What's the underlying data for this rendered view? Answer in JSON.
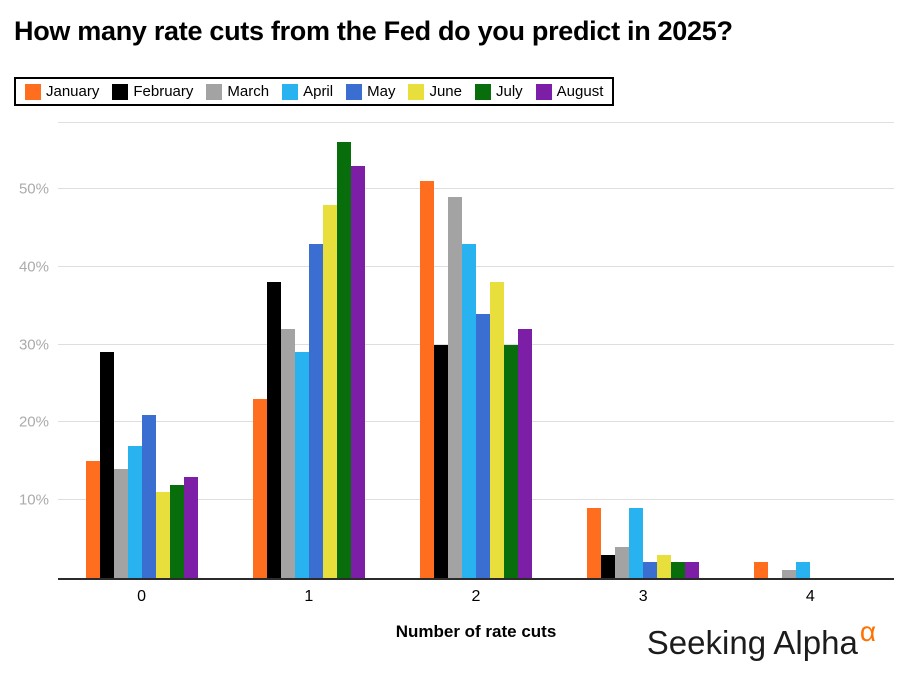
{
  "chart_data": {
    "type": "bar",
    "title": "How many rate cuts from the Fed do you predict in 2025?",
    "xlabel": "Number of rate cuts",
    "ylabel": "",
    "categories": [
      "0",
      "1",
      "2",
      "3",
      "4"
    ],
    "series": [
      {
        "name": "January",
        "color": "#FF6E1E",
        "values": [
          15,
          23,
          51,
          9,
          2
        ]
      },
      {
        "name": "February",
        "color": "#000000",
        "values": [
          29,
          38,
          30,
          3,
          0
        ]
      },
      {
        "name": "March",
        "color": "#A3A3A3",
        "values": [
          14,
          32,
          49,
          4,
          1
        ]
      },
      {
        "name": "April",
        "color": "#29B2F0",
        "values": [
          17,
          29,
          43,
          9,
          2
        ]
      },
      {
        "name": "May",
        "color": "#3A6ED0",
        "values": [
          21,
          43,
          34,
          2,
          0
        ]
      },
      {
        "name": "June",
        "color": "#E9DF3C",
        "values": [
          11,
          48,
          38,
          3,
          0
        ]
      },
      {
        "name": "July",
        "color": "#086E0C",
        "values": [
          12,
          56,
          30,
          2,
          0
        ]
      },
      {
        "name": "August",
        "color": "#7D1FA6",
        "values": [
          13,
          53,
          32,
          2,
          0
        ]
      }
    ],
    "yticks": [
      10,
      20,
      30,
      40,
      50
    ],
    "ytick_suffix": "%",
    "ylim": [
      0,
      58.5
    ],
    "grid": true,
    "legend_position": "top"
  },
  "branding": {
    "text": "Seeking Alpha",
    "alpha_glyph": "α",
    "accent_color": "#FF7200"
  }
}
